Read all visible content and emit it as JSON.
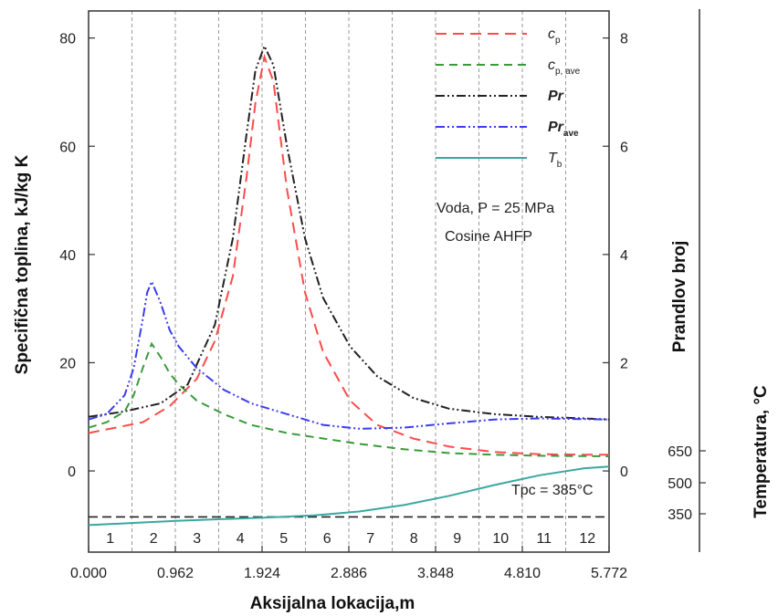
{
  "chart_data": {
    "type": "line",
    "xlabel": "Aksijalna lokacija,m",
    "ylabel_left": "Specifična toplina, kJ/kg K",
    "ylabel_right": "Prandlov broj",
    "ylabel_temp": "Temperatura, °C",
    "xlim": [
      0,
      5.772
    ],
    "ylim_left": [
      -15,
      85
    ],
    "ylim_right": [
      -1.5,
      8.5
    ],
    "x_ticks": [
      "0.000",
      "0.962",
      "1.924",
      "2.886",
      "3.848",
      "4.810",
      "5.772"
    ],
    "y_ticks_left": [
      "0",
      "20",
      "40",
      "60",
      "80"
    ],
    "y_ticks_right": [
      "0",
      "2",
      "4",
      "6",
      "8"
    ],
    "temp_ticks": [
      "650",
      "500",
      "350"
    ],
    "section_labels": [
      "1",
      "2",
      "3",
      "4",
      "5",
      "6",
      "7",
      "8",
      "9",
      "10",
      "11",
      "12"
    ],
    "annotation_fluid": "Voda, P = 25 MPa",
    "annotation_flux": "Cosine AHFP",
    "pseudocritical_label": "Tpc = 385°C",
    "pseudocritical_value_left_axis": -8.5,
    "grid": "vertical dashed",
    "legend_position": "top-right",
    "series": [
      {
        "name": "cp",
        "axis": "left",
        "color": "#ff4b4b",
        "dash": "12,7",
        "x": [
          0,
          0.3,
          0.6,
          0.9,
          1.2,
          1.4,
          1.6,
          1.75,
          1.85,
          1.95,
          2.05,
          2.2,
          2.4,
          2.6,
          2.9,
          3.2,
          3.6,
          4.0,
          4.5,
          5.0,
          5.5,
          5.772
        ],
        "values": [
          7,
          8,
          9,
          12,
          17,
          24,
          36,
          54,
          68,
          76.5,
          72,
          52,
          33,
          22,
          13,
          8.5,
          6,
          4.5,
          3.5,
          3.1,
          3.0,
          3.0
        ]
      },
      {
        "name": "cp,ave",
        "axis": "left",
        "color": "#3a9a3a",
        "dash": "9,6",
        "x": [
          0,
          0.2,
          0.4,
          0.5,
          0.6,
          0.7,
          0.8,
          0.9,
          1.0,
          1.2,
          1.5,
          1.8,
          2.2,
          2.6,
          3.0,
          3.5,
          4.0,
          4.5,
          5.0,
          5.772
        ],
        "values": [
          8,
          9,
          11,
          14,
          19,
          23.5,
          21,
          18,
          16,
          13,
          10.5,
          8.5,
          7,
          6,
          5,
          4,
          3.3,
          3.0,
          2.8,
          2.7
        ]
      },
      {
        "name": "Pr",
        "axis": "right",
        "color": "#222222",
        "dash": "10,3,2,3,2,3",
        "x": [
          0,
          0.4,
          0.8,
          1.1,
          1.4,
          1.6,
          1.75,
          1.85,
          1.95,
          2.05,
          2.2,
          2.4,
          2.6,
          2.9,
          3.2,
          3.6,
          4.0,
          4.5,
          5.0,
          5.5,
          5.772
        ],
        "values": [
          1.0,
          1.1,
          1.25,
          1.6,
          2.7,
          4.3,
          6.2,
          7.4,
          7.85,
          7.5,
          6.0,
          4.3,
          3.2,
          2.3,
          1.75,
          1.35,
          1.15,
          1.05,
          1.0,
          0.97,
          0.95
        ]
      },
      {
        "name": "Prave",
        "axis": "right",
        "color": "#3c3cf0",
        "dash": "10,3,2,3,2,3",
        "x": [
          0,
          0.2,
          0.4,
          0.5,
          0.6,
          0.65,
          0.7,
          0.8,
          0.9,
          1.0,
          1.2,
          1.5,
          1.8,
          2.2,
          2.6,
          3.0,
          3.5,
          4.0,
          4.5,
          5.0,
          5.772
        ],
        "values": [
          0.95,
          1.05,
          1.4,
          1.9,
          2.8,
          3.3,
          3.5,
          3.1,
          2.6,
          2.3,
          1.9,
          1.5,
          1.25,
          1.05,
          0.85,
          0.78,
          0.8,
          0.88,
          0.95,
          0.97,
          0.95
        ]
      },
      {
        "name": "Tb",
        "axis": "left",
        "color": "#3aa7a0",
        "dash": "",
        "x": [
          0,
          0.5,
          1.0,
          1.5,
          2.0,
          2.5,
          3.0,
          3.5,
          4.0,
          4.5,
          5.0,
          5.5,
          5.772
        ],
        "values": [
          -10,
          -9.6,
          -9.2,
          -8.9,
          -8.6,
          -8.2,
          -7.5,
          -6.3,
          -4.6,
          -2.6,
          -0.8,
          0.5,
          0.8
        ]
      }
    ]
  }
}
